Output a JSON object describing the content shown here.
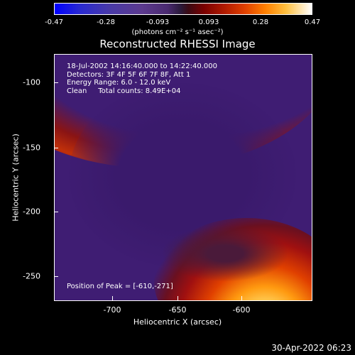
{
  "colorbar": {
    "ticks": [
      "-0.47",
      "-0.28",
      "-0.093",
      "0.093",
      "0.28",
      "0.47"
    ],
    "unit": "(photons cm⁻² s⁻¹ asec⁻²)"
  },
  "title": "Reconstructed RHESSI Image",
  "annotations": {
    "time": "18-Jul-2002 14:16:40.000 to 14:22:40.000",
    "detectors": "Detectors: 3F 4F 5F 6F 7F 8F, Att 1",
    "energy": "Energy Range: 6.0 - 12.0 keV",
    "clean": "Clean     Total counts: 8.49E+04",
    "peak": "Position of Peak = [-610,-271]"
  },
  "axes": {
    "xlabel": "Heliocentric X (arcsec)",
    "ylabel": "Heliocentric Y (arcsec)",
    "xticks": [
      "-700",
      "-650",
      "-600"
    ],
    "yticks": [
      "-100",
      "-150",
      "-200",
      "-250"
    ]
  },
  "timestamp": "30-Apr-2022 06:23"
}
